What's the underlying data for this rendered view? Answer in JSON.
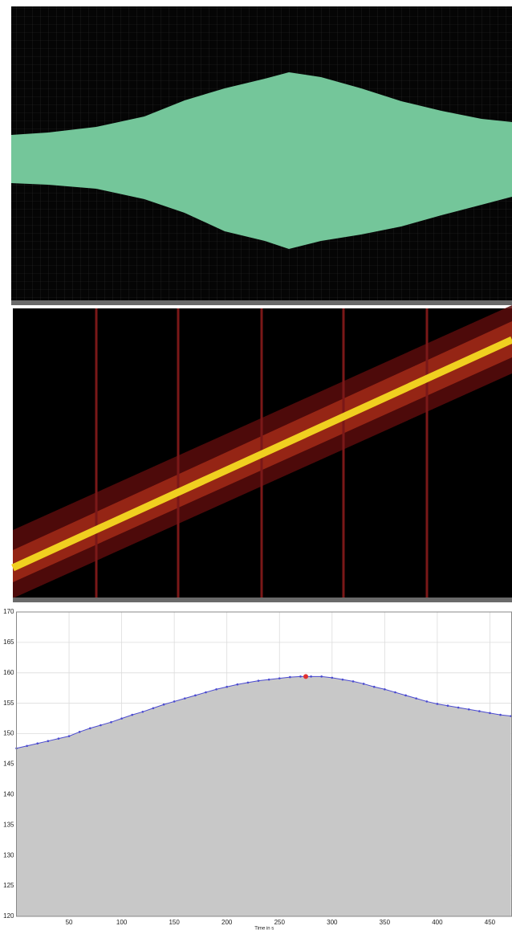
{
  "chart_data": {
    "type": "area",
    "xlabel": "Time in s",
    "x": [
      0,
      10,
      20,
      30,
      40,
      50,
      60,
      70,
      80,
      90,
      100,
      110,
      120,
      130,
      140,
      150,
      160,
      170,
      180,
      190,
      200,
      210,
      220,
      230,
      240,
      250,
      260,
      270,
      280,
      290,
      300,
      310,
      320,
      330,
      340,
      350,
      360,
      370,
      380,
      390,
      400,
      410,
      420,
      430,
      440,
      450,
      460,
      470
    ],
    "series": [
      {
        "color": "#4b4bd0",
        "fill": "#c8c8c8",
        "values": [
          147.6,
          148.0,
          148.4,
          148.8,
          149.2,
          149.6,
          150.3,
          150.9,
          151.4,
          151.9,
          152.5,
          153.1,
          153.6,
          154.2,
          154.8,
          155.3,
          155.8,
          156.3,
          156.8,
          157.3,
          157.7,
          158.1,
          158.4,
          158.7,
          158.9,
          159.1,
          159.3,
          159.4,
          159.4,
          159.4,
          159.2,
          158.9,
          158.6,
          158.2,
          157.7,
          157.3,
          156.8,
          156.3,
          155.8,
          155.3,
          154.9,
          154.6,
          154.3,
          154.0,
          153.7,
          153.4,
          153.1,
          152.9
        ]
      }
    ],
    "highlight": {
      "x": 275,
      "y": 159.4,
      "color": "#e03030"
    },
    "xlim": [
      0,
      471
    ],
    "ylim": [
      120,
      170
    ],
    "xticks": [
      50,
      100,
      150,
      200,
      250,
      300,
      350,
      400,
      450
    ],
    "yticks": [
      120,
      125,
      130,
      135,
      140,
      145,
      150,
      155,
      160,
      165,
      170
    ],
    "grid": true
  }
}
